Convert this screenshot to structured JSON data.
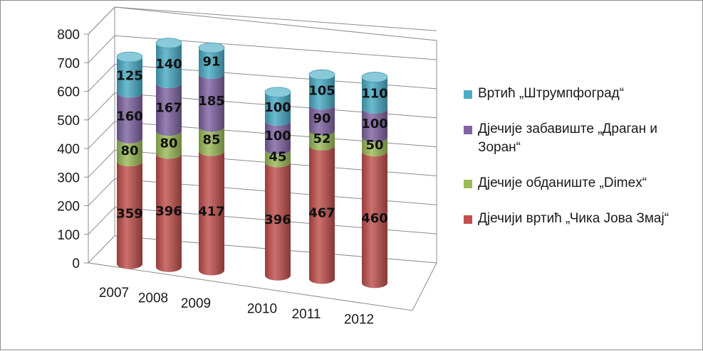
{
  "chart_data": {
    "type": "bar",
    "stacked": true,
    "three_d": true,
    "bar_shape": "cylinder",
    "categories": [
      "2007",
      "2008",
      "2009",
      "2010",
      "2011",
      "2012"
    ],
    "series": [
      {
        "name": "Дјечији вртић „Чика Јова Змај“",
        "color": "#c0504d",
        "values": [
          359,
          396,
          417,
          396,
          467,
          460
        ]
      },
      {
        "name": "Дјечије обданиште „Dimex“",
        "color": "#9bbb59",
        "values": [
          80,
          80,
          85,
          45,
          52,
          50
        ]
      },
      {
        "name": "Дјечије забавиште „Драган и Зоран“",
        "color": "#8064a2",
        "values": [
          160,
          167,
          185,
          100,
          90,
          100
        ]
      },
      {
        "name": "Вртић „Штрумпфоград“",
        "color": "#4bacc6",
        "values": [
          125,
          140,
          91,
          100,
          105,
          110
        ]
      }
    ],
    "y_ticks": [
      "0",
      "100",
      "200",
      "300",
      "400",
      "500",
      "600",
      "700",
      "800"
    ],
    "ylim": [
      0,
      800
    ],
    "grid": true,
    "legend_position": "right"
  }
}
